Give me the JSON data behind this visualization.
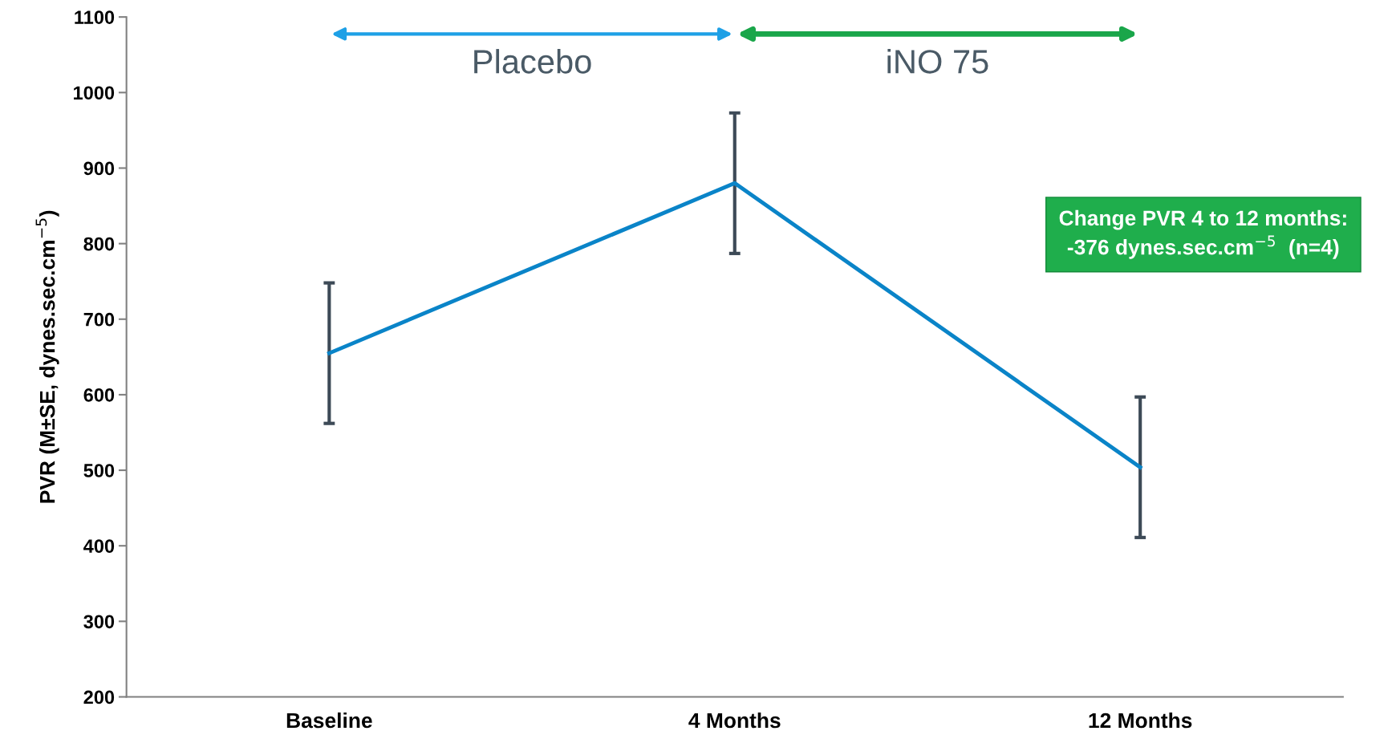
{
  "chart_data": {
    "type": "line",
    "categories": [
      "Baseline",
      "4 Months",
      "12 Months"
    ],
    "series": [
      {
        "color": "#0a84c8",
        "values": [
          655,
          880,
          504
        ],
        "errors": [
          93,
          93,
          93
        ]
      }
    ],
    "ylabel": "PVR (M±SE, dynes.sec.cm$^{−5}$)",
    "ylim": [
      200,
      1100
    ],
    "yticks": [
      200,
      300,
      400,
      500,
      600,
      700,
      800,
      900,
      1000,
      1100
    ],
    "grid": false,
    "legend": false,
    "marker": "none",
    "line_style": "solid",
    "annotations": [
      "Placebo",
      "iNO 75",
      "Change PVR 4 to 12 months:\n-376 dynes.sec.cm$^{−5}$  (n=4)"
    ]
  }
}
